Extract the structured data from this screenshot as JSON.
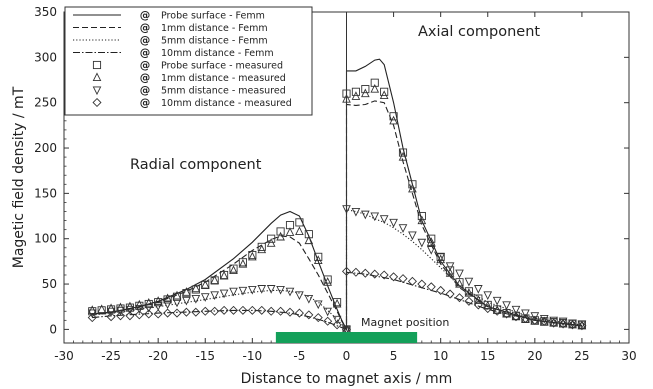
{
  "chart_data": {
    "type": "line",
    "xlabel": "Distance to magnet axis / mm",
    "ylabel": "Magetic field density / mT",
    "xlim": [
      -30,
      30
    ],
    "ylim": [
      -15,
      350
    ],
    "xticks": [
      -30,
      -25,
      -20,
      -15,
      -10,
      -5,
      0,
      5,
      10,
      15,
      20,
      25,
      30
    ],
    "yticks": [
      0,
      50,
      100,
      150,
      200,
      250,
      300,
      350
    ],
    "grid": false,
    "legend_position": "top-left",
    "annotations": {
      "radial": "Radial component",
      "axial": "Axial component",
      "magnet": "Magnet position"
    },
    "magnet_bar": {
      "x_range": [
        -7.5,
        7.5
      ],
      "color": "#14a05a"
    },
    "legend_marker": "@",
    "series": [
      {
        "name": "Probe surface - Femm",
        "style": "solid",
        "x": [
          -27,
          -25,
          -22,
          -20,
          -17,
          -15,
          -12,
          -10,
          -8,
          -7,
          -6,
          -5,
          -4,
          -3,
          -2,
          -1,
          -0.5,
          0,
          0,
          1,
          2,
          3,
          3.5,
          4,
          5,
          6,
          7,
          8,
          10,
          12,
          15,
          20,
          25
        ],
        "y": [
          17,
          19,
          25,
          31,
          44,
          55,
          78,
          96,
          117,
          126,
          130,
          125,
          103,
          75,
          48,
          22,
          10,
          0,
          285,
          285,
          290,
          297,
          298,
          292,
          250,
          200,
          160,
          120,
          75,
          48,
          25,
          10,
          4
        ]
      },
      {
        "name": "1mm distance - Femm",
        "style": "dashed",
        "x": [
          -27,
          -25,
          -22,
          -20,
          -17,
          -15,
          -12,
          -10,
          -8,
          -7,
          -6,
          -5,
          -4,
          -3,
          -2,
          -1,
          -0.5,
          0,
          0,
          1,
          2,
          3,
          4,
          5,
          6,
          7,
          8,
          10,
          12,
          15,
          20,
          25
        ],
        "y": [
          17,
          19,
          25,
          30,
          42,
          52,
          72,
          87,
          99,
          103,
          102,
          95,
          78,
          60,
          40,
          20,
          9,
          0,
          248,
          247,
          248,
          252,
          250,
          225,
          185,
          150,
          115,
          72,
          46,
          25,
          10,
          4
        ]
      },
      {
        "name": "5mm distance - Femm",
        "style": "dotted",
        "x": [
          -27,
          -25,
          -20,
          -15,
          -12,
          -10,
          -8,
          -7,
          -6,
          -5,
          -4,
          -3,
          -2,
          -1,
          0,
          0,
          1,
          2,
          3,
          4,
          5,
          6,
          7,
          8,
          10,
          12,
          15,
          20,
          25
        ],
        "y": [
          16,
          18,
          25,
          33,
          38,
          41,
          43,
          43,
          42,
          40,
          36,
          30,
          21,
          11,
          0,
          132,
          130,
          127,
          122,
          118,
          112,
          105,
          97,
          88,
          68,
          48,
          30,
          12,
          5
        ]
      },
      {
        "name": "10mm distance - Femm",
        "style": "dashdot",
        "x": [
          -27,
          -25,
          -20,
          -15,
          -12,
          -10,
          -8,
          -7,
          -6,
          -5,
          -4,
          -3,
          -2,
          -1,
          0,
          0,
          1,
          2,
          3,
          4,
          5,
          6,
          8,
          10,
          12,
          15,
          20,
          25
        ],
        "y": [
          13,
          15,
          18,
          20,
          21,
          21,
          20,
          19,
          18,
          16,
          14,
          11,
          8,
          4,
          0,
          63,
          62,
          61,
          59,
          57,
          55,
          52,
          46,
          40,
          33,
          22,
          10,
          4
        ]
      },
      {
        "name": "Probe surface - measured",
        "marker": "square",
        "x": [
          -27,
          -26,
          -25,
          -24,
          -23,
          -22,
          -21,
          -20,
          -19,
          -18,
          -17,
          -16,
          -15,
          -14,
          -13,
          -12,
          -11,
          -10,
          -9,
          -8,
          -7,
          -6,
          -5,
          -4,
          -3,
          -2,
          -1,
          0,
          0,
          1,
          2,
          3,
          4,
          5,
          6,
          7,
          8,
          9,
          10,
          11,
          12,
          13,
          14,
          15,
          16,
          17,
          18,
          19,
          20,
          21,
          22,
          23,
          24,
          25
        ],
        "y": [
          20,
          21,
          22,
          23,
          24,
          26,
          28,
          30,
          33,
          36,
          40,
          44,
          49,
          54,
          60,
          67,
          74,
          82,
          91,
          100,
          108,
          115,
          118,
          105,
          80,
          55,
          30,
          0,
          260,
          262,
          265,
          272,
          262,
          235,
          195,
          160,
          125,
          100,
          80,
          65,
          52,
          42,
          34,
          27,
          22,
          18,
          15,
          12,
          10,
          9,
          8,
          7,
          6,
          5
        ]
      },
      {
        "name": "1mm distance - measured",
        "marker": "triangle-up",
        "x": [
          -27,
          -26,
          -25,
          -24,
          -23,
          -22,
          -21,
          -20,
          -19,
          -18,
          -17,
          -16,
          -15,
          -14,
          -13,
          -12,
          -11,
          -10,
          -9,
          -8,
          -7,
          -6,
          -5,
          -4,
          -3,
          -2,
          -1,
          0,
          0,
          1,
          2,
          3,
          4,
          5,
          6,
          7,
          8,
          9,
          10,
          11,
          12,
          13,
          14,
          15,
          16,
          17,
          18,
          19,
          20,
          21,
          22,
          23,
          24,
          25
        ],
        "y": [
          21,
          22,
          23,
          24,
          25,
          27,
          29,
          31,
          34,
          37,
          41,
          45,
          49,
          54,
          59,
          65,
          72,
          80,
          88,
          95,
          102,
          107,
          108,
          98,
          76,
          52,
          28,
          0,
          254,
          257,
          260,
          265,
          258,
          230,
          190,
          155,
          120,
          96,
          77,
          62,
          50,
          40,
          32,
          26,
          21,
          17,
          14,
          11,
          9,
          8,
          7,
          6,
          5,
          4
        ]
      },
      {
        "name": "5mm distance - measured",
        "marker": "triangle-down",
        "x": [
          -27,
          -25,
          -24,
          -23,
          -22,
          -21,
          -20,
          -19,
          -18,
          -17,
          -16,
          -15,
          -14,
          -13,
          -12,
          -11,
          -10,
          -9,
          -8,
          -7,
          -6,
          -5,
          -4,
          -3,
          -2,
          -1,
          0,
          0,
          1,
          2,
          3,
          4,
          5,
          6,
          7,
          8,
          9,
          10,
          11,
          12,
          13,
          14,
          15,
          16,
          17,
          18,
          19,
          20,
          21,
          22,
          23,
          24,
          25
        ],
        "y": [
          18,
          20,
          21,
          22,
          23,
          24,
          26,
          28,
          30,
          32,
          34,
          36,
          38,
          40,
          42,
          43,
          44,
          45,
          45,
          44,
          42,
          38,
          34,
          28,
          20,
          11,
          0,
          133,
          130,
          127,
          125,
          122,
          118,
          112,
          104,
          96,
          88,
          80,
          70,
          62,
          53,
          45,
          38,
          32,
          27,
          22,
          18,
          15,
          12,
          10,
          9,
          7,
          6
        ]
      },
      {
        "name": "10mm distance - measured",
        "marker": "diamond",
        "x": [
          -27,
          -25,
          -24,
          -23,
          -22,
          -21,
          -20,
          -19,
          -18,
          -17,
          -16,
          -15,
          -14,
          -13,
          -12,
          -11,
          -10,
          -9,
          -8,
          -7,
          -6,
          -5,
          -4,
          -3,
          -2,
          -1,
          0,
          0,
          1,
          2,
          3,
          4,
          5,
          6,
          7,
          8,
          9,
          10,
          11,
          12,
          13,
          14,
          15,
          16,
          17,
          18,
          19,
          20,
          21,
          22,
          23,
          24,
          25
        ],
        "y": [
          13,
          14,
          15,
          15,
          16,
          17,
          17,
          18,
          18,
          19,
          19,
          20,
          20,
          21,
          21,
          21,
          21,
          21,
          20,
          20,
          19,
          18,
          16,
          13,
          9,
          5,
          0,
          64,
          63,
          62,
          61,
          60,
          58,
          56,
          53,
          50,
          47,
          43,
          39,
          35,
          31,
          27,
          23,
          20,
          17,
          14,
          12,
          10,
          9,
          7,
          6,
          5,
          4
        ]
      }
    ]
  }
}
